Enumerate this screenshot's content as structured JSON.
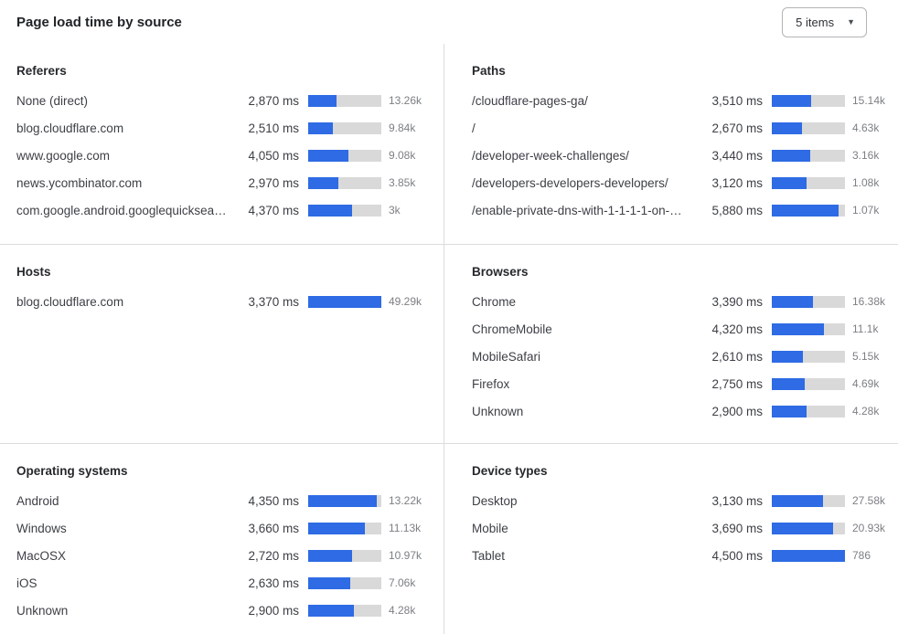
{
  "header": {
    "title": "Page load time by source",
    "items_select": {
      "value": "5 items",
      "icon": "caret-down-icon"
    }
  },
  "colors": {
    "bar_fill": "#2e6be4",
    "bar_track": "#d9d9d9",
    "divider": "#dcdcdc",
    "text_primary": "#3c3f45",
    "text_secondary": "#7c7f84"
  },
  "chart_data": {
    "type": "bar",
    "title": "Page load time by source",
    "unit": "ms",
    "layout": "2-column 3-row grid of horizontal bar lists, bars normalized per panel",
    "panels": [
      {
        "title": "Referers",
        "rows": [
          {
            "label": "None (direct)",
            "ms": 2870,
            "ms_label": "2,870 ms",
            "count_label": "13.26k",
            "bar_pct": 39
          },
          {
            "label": "blog.cloudflare.com",
            "ms": 2510,
            "ms_label": "2,510 ms",
            "count_label": "9.84k",
            "bar_pct": 34
          },
          {
            "label": "www.google.com",
            "ms": 4050,
            "ms_label": "4,050 ms",
            "count_label": "9.08k",
            "bar_pct": 55
          },
          {
            "label": "news.ycombinator.com",
            "ms": 2970,
            "ms_label": "2,970 ms",
            "count_label": "3.85k",
            "bar_pct": 41
          },
          {
            "label": "com.google.android.googlequicksearc…",
            "ms": 4370,
            "ms_label": "4,370 ms",
            "count_label": "3k",
            "bar_pct": 60
          }
        ]
      },
      {
        "title": "Paths",
        "rows": [
          {
            "label": "/cloudflare-pages-ga/",
            "ms": 3510,
            "ms_label": "3,510 ms",
            "count_label": "15.14k",
            "bar_pct": 54
          },
          {
            "label": "/",
            "ms": 2670,
            "ms_label": "2,670 ms",
            "count_label": "4.63k",
            "bar_pct": 41
          },
          {
            "label": "/developer-week-challenges/",
            "ms": 3440,
            "ms_label": "3,440 ms",
            "count_label": "3.16k",
            "bar_pct": 53
          },
          {
            "label": "/developers-developers-developers/",
            "ms": 3120,
            "ms_label": "3,120 ms",
            "count_label": "1.08k",
            "bar_pct": 48
          },
          {
            "label": "/enable-private-dns-with-1-1-1-1-on-…",
            "ms": 5880,
            "ms_label": "5,880 ms",
            "count_label": "1.07k",
            "bar_pct": 91
          }
        ]
      },
      {
        "title": "Hosts",
        "rows": [
          {
            "label": "blog.cloudflare.com",
            "ms": 3370,
            "ms_label": "3,370 ms",
            "count_label": "49.29k",
            "bar_pct": 100
          }
        ]
      },
      {
        "title": "Browsers",
        "rows": [
          {
            "label": "Chrome",
            "ms": 3390,
            "ms_label": "3,390 ms",
            "count_label": "16.38k",
            "bar_pct": 56
          },
          {
            "label": "ChromeMobile",
            "ms": 4320,
            "ms_label": "4,320 ms",
            "count_label": "11.1k",
            "bar_pct": 71
          },
          {
            "label": "MobileSafari",
            "ms": 2610,
            "ms_label": "2,610 ms",
            "count_label": "5.15k",
            "bar_pct": 43
          },
          {
            "label": "Firefox",
            "ms": 2750,
            "ms_label": "2,750 ms",
            "count_label": "4.69k",
            "bar_pct": 45
          },
          {
            "label": "Unknown",
            "ms": 2900,
            "ms_label": "2,900 ms",
            "count_label": "4.28k",
            "bar_pct": 48
          }
        ]
      },
      {
        "title": "Operating systems",
        "rows": [
          {
            "label": "Android",
            "ms": 4350,
            "ms_label": "4,350 ms",
            "count_label": "13.22k",
            "bar_pct": 94
          },
          {
            "label": "Windows",
            "ms": 3660,
            "ms_label": "3,660 ms",
            "count_label": "11.13k",
            "bar_pct": 78
          },
          {
            "label": "MacOSX",
            "ms": 2720,
            "ms_label": "2,720 ms",
            "count_label": "10.97k",
            "bar_pct": 60
          },
          {
            "label": "iOS",
            "ms": 2630,
            "ms_label": "2,630 ms",
            "count_label": "7.06k",
            "bar_pct": 57
          },
          {
            "label": "Unknown",
            "ms": 2900,
            "ms_label": "2,900 ms",
            "count_label": "4.28k",
            "bar_pct": 63
          }
        ]
      },
      {
        "title": "Device types",
        "rows": [
          {
            "label": "Desktop",
            "ms": 3130,
            "ms_label": "3,130 ms",
            "count_label": "27.58k",
            "bar_pct": 70
          },
          {
            "label": "Mobile",
            "ms": 3690,
            "ms_label": "3,690 ms",
            "count_label": "20.93k",
            "bar_pct": 84
          },
          {
            "label": "Tablet",
            "ms": 4500,
            "ms_label": "4,500 ms",
            "count_label": "786",
            "bar_pct": 100
          }
        ]
      }
    ]
  }
}
